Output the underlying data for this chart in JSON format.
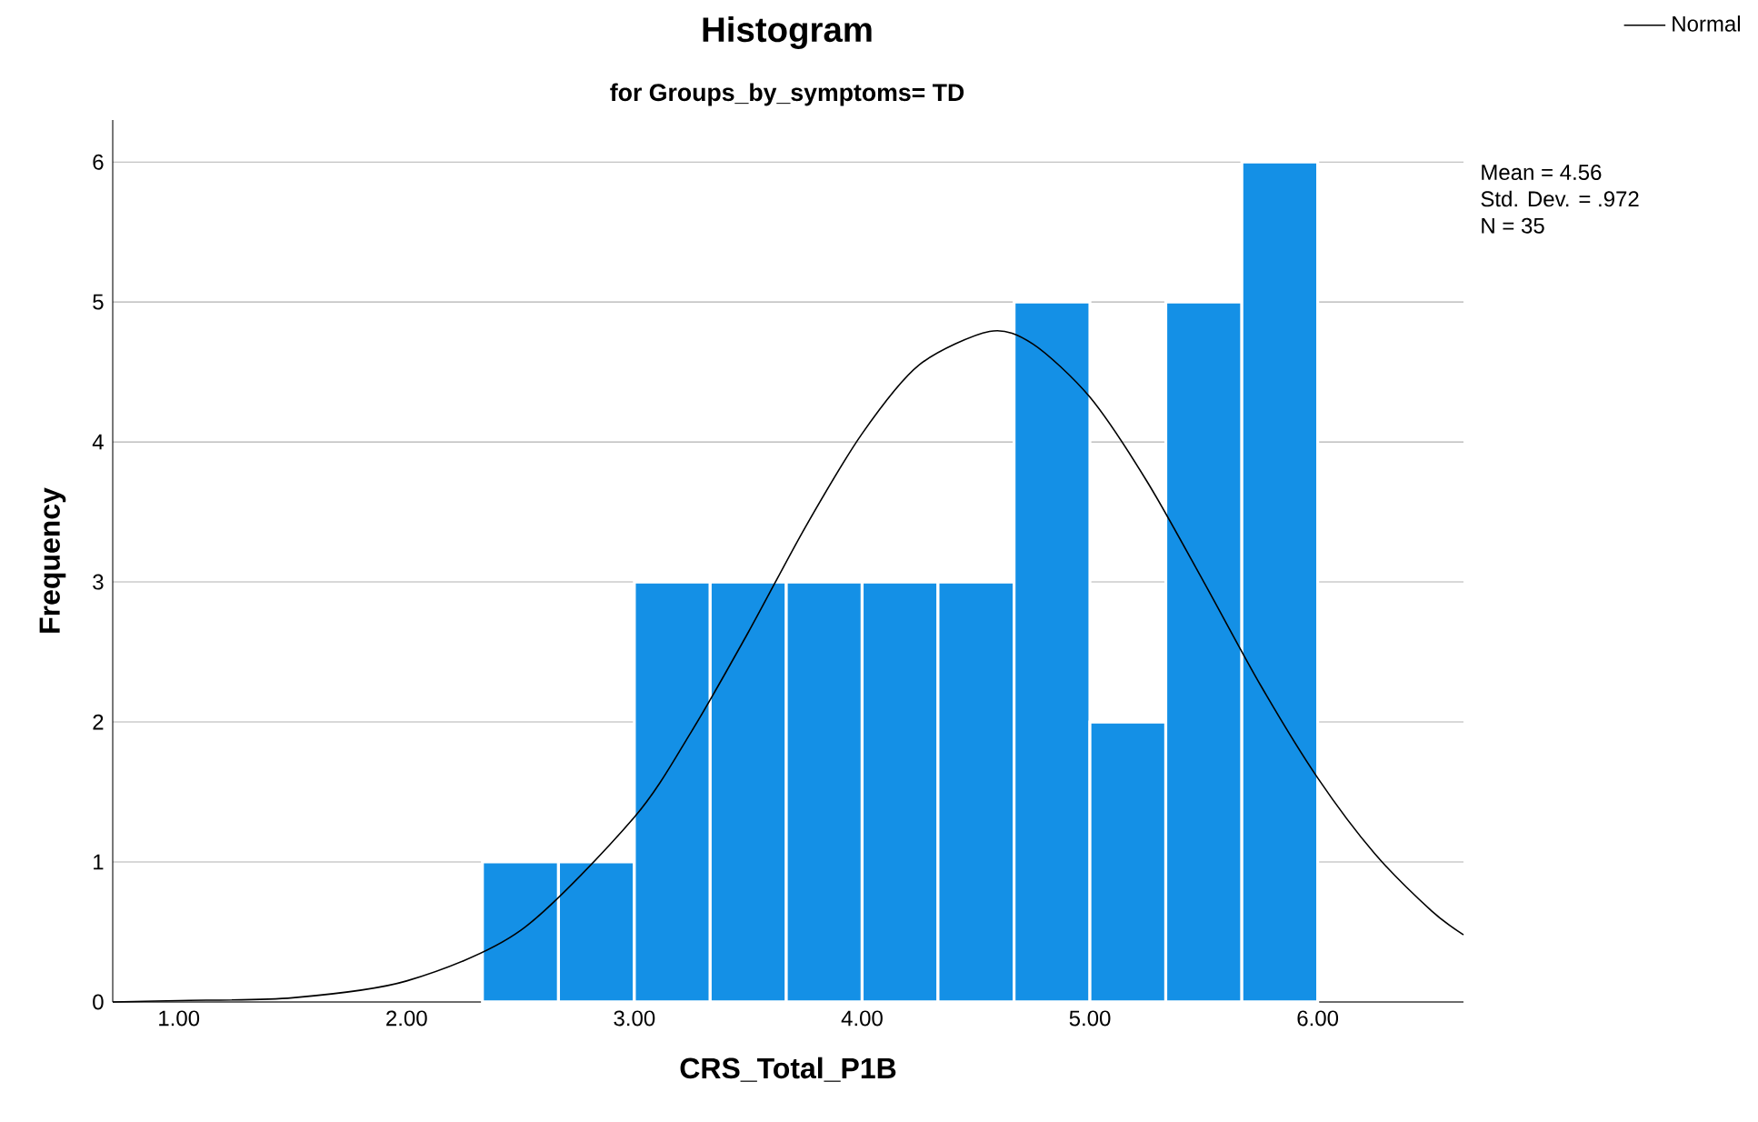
{
  "chart_data": {
    "type": "histogram",
    "title": "Histogram",
    "subtitle": "for Groups_by_symptoms= TD",
    "xlabel": "CRS_Total_P1B",
    "ylabel": "Frequency",
    "bins": [
      2.333,
      2.667,
      3.0,
      3.333,
      3.667,
      4.0,
      4.333,
      4.667,
      5.0,
      5.333,
      5.667,
      6.0
    ],
    "values": [
      1,
      1,
      3,
      3,
      3,
      3,
      3,
      5,
      2,
      5,
      6
    ],
    "color": "#1490e6",
    "series": [
      {
        "name": "Normal",
        "type": "line",
        "color": "#000000",
        "x": [
          0.71,
          1.0,
          1.5,
          2.0,
          2.5,
          3.0,
          3.25,
          3.5,
          3.75,
          4.0,
          4.25,
          4.56,
          4.75,
          5.0,
          5.25,
          5.5,
          5.75,
          6.0,
          6.25,
          6.5,
          6.64
        ],
        "values": [
          0.0,
          0.01,
          0.03,
          0.15,
          0.51,
          1.32,
          1.93,
          2.64,
          3.39,
          4.06,
          4.55,
          4.79,
          4.7,
          4.32,
          3.72,
          3.0,
          2.26,
          1.6,
          1.06,
          0.65,
          0.48
        ]
      }
    ],
    "xlim": [
      0.71,
      6.64
    ],
    "ylim": [
      0,
      6.3
    ],
    "xticks": [
      {
        "value": 1,
        "label": "1.00"
      },
      {
        "value": 2,
        "label": "2.00"
      },
      {
        "value": 3,
        "label": "3.00"
      },
      {
        "value": 4,
        "label": "4.00"
      },
      {
        "value": 5,
        "label": "5.00"
      },
      {
        "value": 6,
        "label": "6.00"
      }
    ],
    "yticks": [
      0,
      1,
      2,
      3,
      4,
      5,
      6
    ],
    "grid": "y",
    "legend": "top right",
    "annotations": [
      "Mean = 4.56",
      "Std. Dev. = .972",
      "N = 35"
    ]
  }
}
